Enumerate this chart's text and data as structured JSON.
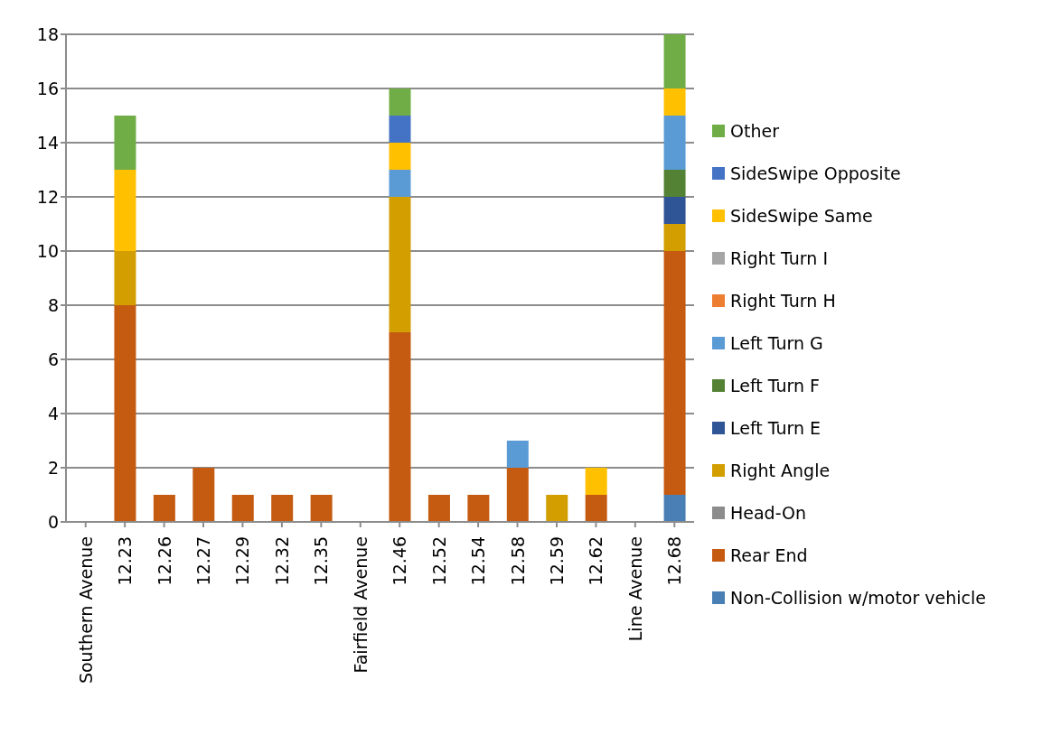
{
  "chart_data": {
    "type": "bar",
    "stacked": true,
    "categories": [
      "Southern Avenue",
      "12.23",
      "12.26",
      "12.27",
      "12.29",
      "12.32",
      "12.35",
      "Fairfield Avenue",
      "12.46",
      "12.52",
      "12.54",
      "12.58",
      "12.59",
      "12.62",
      "Line Avenue",
      "12.68"
    ],
    "series": [
      {
        "name": "Non-Collision w/motor vehicle",
        "color": "#4a7fb5",
        "values": [
          null,
          null,
          null,
          null,
          null,
          null,
          null,
          null,
          null,
          null,
          null,
          null,
          null,
          null,
          null,
          1
        ]
      },
      {
        "name": "Rear End",
        "color": "#c55a11",
        "values": [
          null,
          8,
          1,
          2,
          1,
          1,
          1,
          null,
          7,
          1,
          1,
          2,
          null,
          1,
          null,
          9
        ]
      },
      {
        "name": "Head-On",
        "color": "#8c8c8c",
        "values": [
          null,
          null,
          null,
          null,
          null,
          null,
          null,
          null,
          null,
          null,
          null,
          null,
          null,
          null,
          null,
          null
        ]
      },
      {
        "name": "Right Angle",
        "color": "#d29e00",
        "values": [
          null,
          2,
          null,
          null,
          null,
          null,
          null,
          null,
          5,
          null,
          null,
          null,
          1,
          null,
          null,
          1
        ]
      },
      {
        "name": "Left Turn E",
        "color": "#2f5597",
        "values": [
          null,
          null,
          null,
          null,
          null,
          null,
          null,
          null,
          null,
          null,
          null,
          null,
          null,
          null,
          null,
          1
        ]
      },
      {
        "name": "Left Turn F",
        "color": "#548235",
        "values": [
          null,
          null,
          null,
          null,
          null,
          null,
          null,
          null,
          null,
          null,
          null,
          null,
          null,
          null,
          null,
          1
        ]
      },
      {
        "name": "Left Turn G",
        "color": "#5b9bd5",
        "values": [
          null,
          null,
          null,
          null,
          null,
          null,
          null,
          null,
          1,
          null,
          null,
          1,
          null,
          null,
          null,
          2
        ]
      },
      {
        "name": "Right Turn H",
        "color": "#ed7d31",
        "values": [
          null,
          null,
          null,
          null,
          null,
          null,
          null,
          null,
          null,
          null,
          null,
          null,
          null,
          null,
          null,
          null
        ]
      },
      {
        "name": "Right Turn I",
        "color": "#a5a5a5",
        "values": [
          null,
          null,
          null,
          null,
          null,
          null,
          null,
          null,
          null,
          null,
          null,
          null,
          null,
          null,
          null,
          null
        ]
      },
      {
        "name": "SideSwipe Same",
        "color": "#ffc000",
        "values": [
          null,
          3,
          null,
          null,
          null,
          null,
          null,
          null,
          1,
          null,
          null,
          null,
          null,
          1,
          null,
          1
        ]
      },
      {
        "name": "SideSwipe Opposite",
        "color": "#4472c4",
        "values": [
          null,
          null,
          null,
          null,
          null,
          null,
          null,
          null,
          1,
          null,
          null,
          null,
          null,
          null,
          null,
          null
        ]
      },
      {
        "name": "Other",
        "color": "#70ad47",
        "values": [
          null,
          2,
          null,
          null,
          null,
          null,
          null,
          null,
          1,
          null,
          null,
          null,
          null,
          null,
          null,
          2
        ]
      }
    ],
    "ylim": [
      0,
      18
    ],
    "yticks": [
      0,
      2,
      4,
      6,
      8,
      10,
      12,
      14,
      16,
      18
    ],
    "grid": "y",
    "legend": "right"
  }
}
